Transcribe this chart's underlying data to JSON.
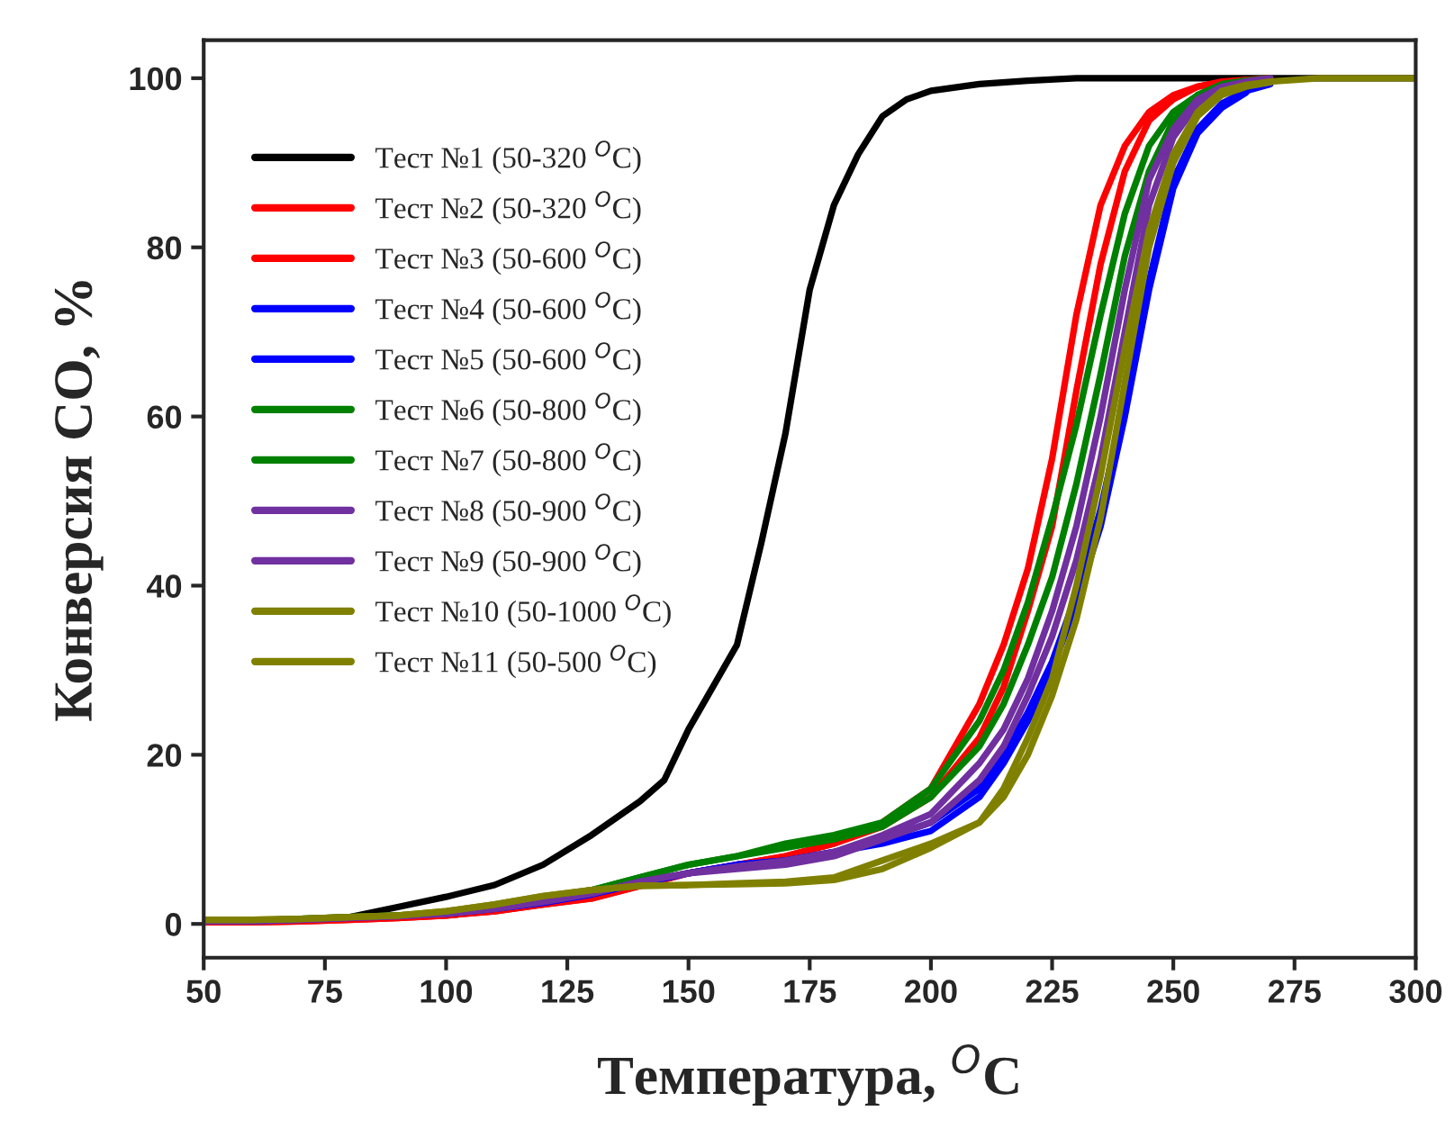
{
  "chart_data": {
    "type": "line",
    "xlabel": "Температура, $^{O}$C",
    "ylabel": "Конверсия CO, %",
    "xlim": [
      50,
      300
    ],
    "ylim": [
      -4,
      104.5
    ],
    "xticks": [
      50,
      75,
      100,
      125,
      150,
      175,
      200,
      225,
      250,
      275,
      300
    ],
    "yticks": [
      0,
      20,
      40,
      60,
      80,
      100
    ],
    "legend": "top left",
    "grid": false,
    "line_style": "solid",
    "marker": "none",
    "x": [
      50,
      60,
      70,
      80,
      90,
      100,
      110,
      120,
      130,
      140,
      150,
      160,
      170,
      180,
      190,
      200,
      210,
      215,
      220,
      225,
      230,
      235,
      240,
      245,
      250,
      255,
      260,
      265,
      270,
      280,
      290,
      300
    ],
    "series": [
      {
        "name": "Тест №1 (50-320 $^{O}$C)",
        "color": "#000000",
        "x": [
          50,
          60,
          70,
          80,
          90,
          100,
          110,
          120,
          130,
          140,
          145,
          150,
          155,
          160,
          165,
          170,
          175,
          180,
          185,
          190,
          195,
          200,
          210,
          220,
          230,
          250,
          275,
          300
        ],
        "values": [
          0.3,
          0.3,
          0.5,
          0.8,
          2,
          3.2,
          4.6,
          7,
          10.5,
          14.5,
          17,
          23,
          28,
          33,
          45,
          58,
          75,
          85,
          91,
          95.5,
          97.5,
          98.5,
          99.3,
          99.7,
          100,
          100,
          100,
          100
        ]
      },
      {
        "name": "Тест №2 (50-320 $^{O}$C)",
        "color": "#ff0000",
        "values": [
          0.2,
          0.2,
          0.3,
          0.5,
          0.7,
          1,
          1.5,
          2.3,
          3,
          4.5,
          6,
          7,
          8,
          9.5,
          12,
          16,
          26,
          33,
          42,
          55,
          72,
          85,
          92,
          96,
          98,
          99,
          99.6,
          99.8,
          null,
          null,
          null,
          null
        ]
      },
      {
        "name": "Тест №3 (50-600 $^{O}$C)",
        "color": "#ff0000",
        "values": [
          0.2,
          0.2,
          0.3,
          0.5,
          0.7,
          1,
          1.5,
          2.3,
          3,
          4.5,
          6,
          7,
          8,
          9.5,
          11.5,
          15,
          22,
          28,
          37,
          47,
          63,
          78,
          89,
          95,
          97.5,
          99,
          99.5,
          99.8,
          100,
          null,
          null,
          null
        ]
      },
      {
        "name": "Тест №4 (50-600 $^{O}$C)",
        "color": "#0000ff",
        "values": [
          null,
          null,
          null,
          null,
          null,
          1.2,
          1.8,
          2.5,
          3.5,
          4.8,
          6,
          7,
          7.5,
          8.5,
          10,
          12,
          16,
          20,
          25,
          31,
          39,
          49,
          62,
          76,
          88,
          94,
          97,
          98.5,
          99.3,
          null,
          null,
          null
        ]
      },
      {
        "name": "Тест №5 (50-600 $^{O}$C)",
        "color": "#0000ff",
        "values": [
          null,
          null,
          null,
          null,
          null,
          1.2,
          1.8,
          2.5,
          3.5,
          4.8,
          6,
          7,
          7.5,
          8.5,
          9.5,
          11,
          15,
          19,
          24,
          30,
          38,
          47,
          60,
          75,
          87,
          93.5,
          96.5,
          98.3,
          null,
          null,
          null,
          null
        ]
      },
      {
        "name": "Тест №6 (50-800 $^{O}$C)",
        "color": "#008000",
        "values": [
          0.4,
          0.4,
          0.6,
          0.8,
          1,
          1.3,
          2,
          3,
          4,
          5.5,
          7,
          8,
          9.5,
          10.5,
          12,
          16,
          24,
          30,
          38,
          48,
          59,
          72,
          84,
          92,
          96,
          98,
          99.3,
          99.7,
          100,
          null,
          null,
          null
        ]
      },
      {
        "name": "Тест №7 (50-800 $^{O}$C)",
        "color": "#008000",
        "values": [
          0.4,
          0.4,
          0.6,
          0.8,
          1,
          1.3,
          2,
          3,
          4,
          5.5,
          7,
          8,
          9,
          10,
          11.5,
          15,
          21,
          26,
          33,
          41,
          52,
          65,
          79,
          89,
          95,
          98,
          99.2,
          99.7,
          null,
          null,
          null,
          null
        ]
      },
      {
        "name": "Тест №8 (50-900 $^{O}$C)",
        "color": "#7030a0",
        "values": [
          0.3,
          0.3,
          0.5,
          0.7,
          0.9,
          1.2,
          1.8,
          2.6,
          3.6,
          5,
          6,
          6.8,
          7.5,
          8.5,
          10.5,
          13,
          19,
          23,
          29,
          37,
          47,
          60,
          75,
          88,
          94,
          97.5,
          99,
          99.6,
          100,
          null,
          null,
          null
        ]
      },
      {
        "name": "Тест №9 (50-900 $^{O}$C)",
        "color": "#7030a0",
        "values": [
          0.3,
          0.3,
          0.5,
          0.7,
          0.9,
          1.2,
          1.8,
          2.6,
          3.6,
          5,
          6,
          6.5,
          7,
          8,
          10,
          12,
          17,
          21,
          27,
          34,
          43,
          55,
          70,
          85,
          93,
          97,
          98.8,
          99.5,
          null,
          null,
          null,
          null
        ]
      },
      {
        "name": "Тест №10 (50-1000 $^{O}$C)",
        "color": "#808000",
        "values": [
          0.5,
          0.5,
          0.6,
          0.8,
          1,
          1.5,
          2.3,
          3.3,
          4,
          4.5,
          4.6,
          4.7,
          4.8,
          5.2,
          6.5,
          9,
          12,
          15,
          20,
          27,
          36,
          48,
          64,
          80,
          90,
          95.5,
          98,
          99,
          99.5,
          null,
          null,
          null
        ]
      },
      {
        "name": "Тест №11 (50-500 $^{O}$C)",
        "color": "#808000",
        "values": [
          0.5,
          0.5,
          0.6,
          0.8,
          1,
          1.5,
          2.3,
          3.3,
          4,
          4.5,
          4.6,
          4.8,
          5,
          5.5,
          7.5,
          9.5,
          12,
          16,
          22,
          29,
          40,
          53,
          68,
          82,
          91,
          96,
          98.5,
          99.2,
          99.6,
          100,
          100,
          100
        ]
      }
    ]
  }
}
